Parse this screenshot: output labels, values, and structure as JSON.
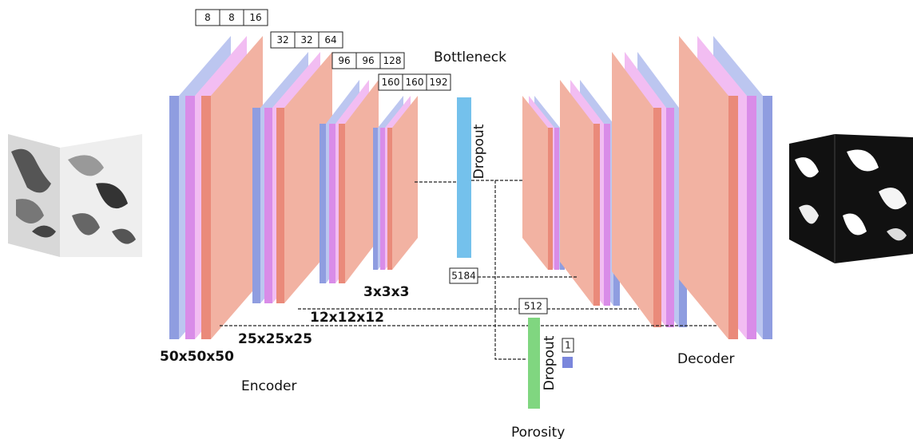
{
  "encoder": {
    "label": "Encoder",
    "blocks": [
      {
        "filters": [
          "8",
          "8",
          "16"
        ],
        "size": "50x50x50"
      },
      {
        "filters": [
          "32",
          "32",
          "64"
        ],
        "size": "25x25x25"
      },
      {
        "filters": [
          "96",
          "96",
          "128"
        ],
        "size": "12x12x12"
      },
      {
        "filters": [
          "160",
          "160",
          "192"
        ],
        "size": "3x3x3"
      }
    ]
  },
  "bottleneck": {
    "label": "Bottleneck",
    "dropout": "Dropout",
    "flatten": "5184",
    "dense": "512",
    "dense_dropout": "Dropout",
    "output": "1",
    "output_label": "Porosity"
  },
  "decoder": {
    "label": "Decoder"
  }
}
